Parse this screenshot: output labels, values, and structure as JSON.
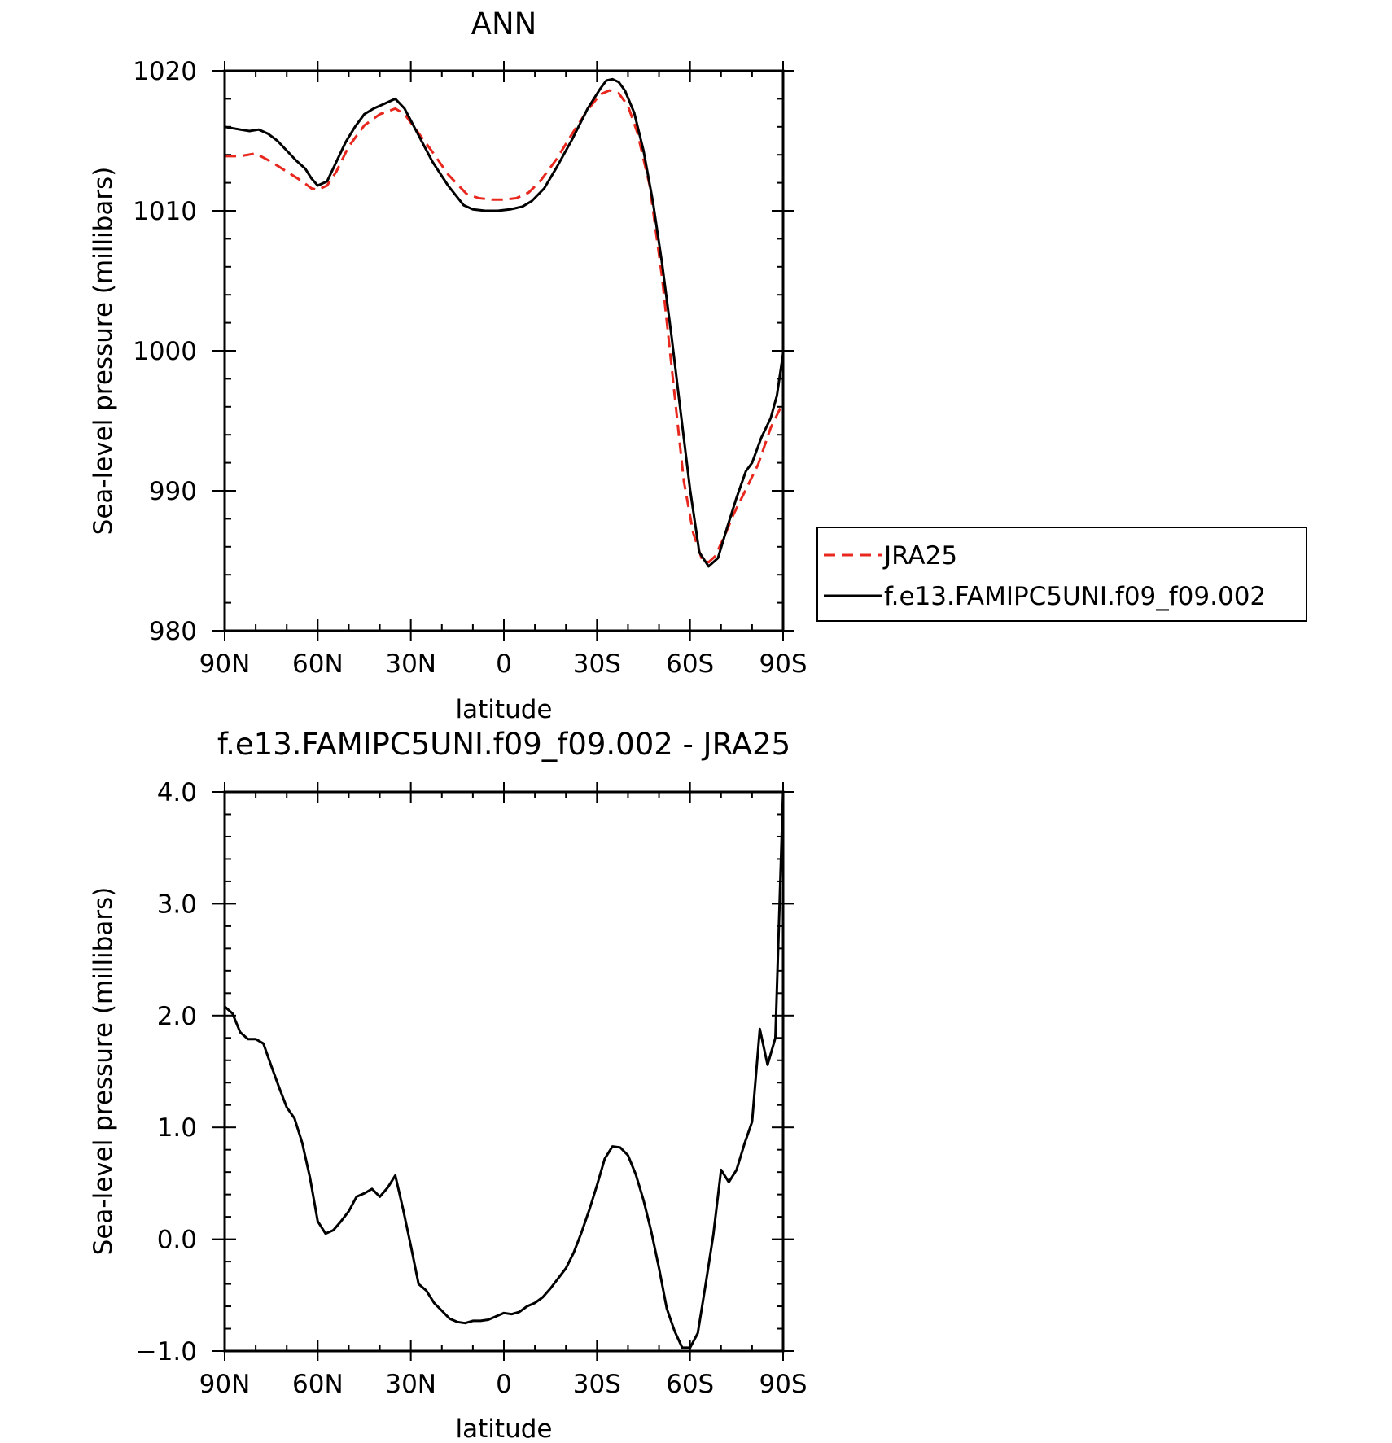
{
  "chart_data": [
    {
      "type": "line",
      "title": "ANN",
      "xlabel": "latitude",
      "ylabel": "Sea-level pressure (millibars)",
      "xlim": [
        90,
        -90
      ],
      "ylim": [
        980,
        1020
      ],
      "x_tick_values": [
        90,
        60,
        30,
        0,
        -30,
        -60,
        -90
      ],
      "x_tick_labels": [
        "90N",
        "60N",
        "30N",
        "0",
        "30S",
        "60S",
        "90S"
      ],
      "y_tick_values": [
        980,
        990,
        1000,
        1010,
        1020
      ],
      "y_tick_labels": [
        "980",
        "990",
        "1000",
        "1010",
        "1020"
      ],
      "legend_position": "right",
      "series": [
        {
          "name": "JRA25",
          "color": "#e8281e",
          "dash": "dashed",
          "x": [
            90,
            85,
            80,
            75,
            70,
            65,
            62,
            60,
            57,
            54,
            50,
            45,
            40,
            35,
            32,
            28,
            23,
            18,
            12,
            8,
            4,
            0,
            -4,
            -8,
            -12,
            -17,
            -22,
            -27,
            -31,
            -34,
            -37,
            -40,
            -43,
            -47,
            -51,
            -55,
            -58,
            -61,
            -64,
            -66,
            -68,
            -71,
            -74,
            -78,
            -82,
            -86,
            -90
          ],
          "values": [
            1013.9,
            1013.9,
            1014.1,
            1013.5,
            1012.8,
            1012.1,
            1011.6,
            1011.5,
            1011.8,
            1012.8,
            1014.6,
            1016.1,
            1016.9,
            1017.3,
            1016.9,
            1015.7,
            1014.2,
            1012.6,
            1011.2,
            1010.9,
            1010.8,
            1010.8,
            1010.9,
            1011.3,
            1012.2,
            1013.7,
            1015.5,
            1017.2,
            1018.3,
            1018.6,
            1018.4,
            1017.5,
            1015.6,
            1011.8,
            1005.2,
            996.9,
            990.7,
            987.0,
            985.0,
            984.9,
            985.3,
            986.7,
            988.3,
            990.1,
            991.9,
            994.5,
            996.3
          ]
        },
        {
          "name": "f.e13.FAMIPC5UNI.f09_f09.002",
          "color": "#000000",
          "dash": "solid",
          "x": [
            90,
            85,
            82,
            79,
            76,
            73,
            70,
            67,
            64,
            62,
            60,
            57,
            54,
            51,
            48,
            45,
            42,
            39,
            35,
            32,
            28,
            23,
            18,
            13,
            10,
            6,
            2,
            -2,
            -6,
            -9,
            -13,
            -17,
            -22,
            -27,
            -31,
            -33,
            -35,
            -37,
            -39,
            -42,
            -45,
            -48,
            -51,
            -54,
            -57,
            -60,
            -63,
            -66,
            -69,
            -72,
            -75,
            -78,
            -80,
            -83,
            -86,
            -88,
            -90
          ],
          "values": [
            1016.0,
            1015.8,
            1015.7,
            1015.8,
            1015.5,
            1015.0,
            1014.3,
            1013.6,
            1013.0,
            1012.3,
            1011.8,
            1012.1,
            1013.5,
            1014.9,
            1016.0,
            1016.9,
            1017.3,
            1017.6,
            1018.0,
            1017.3,
            1015.6,
            1013.5,
            1011.8,
            1010.4,
            1010.1,
            1010.0,
            1010.0,
            1010.1,
            1010.3,
            1010.7,
            1011.6,
            1013.1,
            1015.1,
            1017.3,
            1018.7,
            1019.3,
            1019.4,
            1019.2,
            1018.6,
            1017.0,
            1014.3,
            1010.7,
            1006.2,
            1001.1,
            995.6,
            990.1,
            985.6,
            984.6,
            985.2,
            987.4,
            989.5,
            991.4,
            992.0,
            993.8,
            995.2,
            996.8,
            999.8
          ]
        }
      ]
    },
    {
      "type": "line",
      "title": "f.e13.FAMIPC5UNI.f09_f09.002 - JRA25",
      "xlabel": "latitude",
      "ylabel": "Sea-level pressure (millibars)",
      "xlim": [
        90,
        -90
      ],
      "ylim": [
        -1.0,
        4.0
      ],
      "x_tick_values": [
        90,
        60,
        30,
        0,
        -30,
        -60,
        -90
      ],
      "x_tick_labels": [
        "90N",
        "60N",
        "30N",
        "0",
        "30S",
        "60S",
        "90S"
      ],
      "y_tick_values": [
        -1.0,
        0.0,
        1.0,
        2.0,
        3.0,
        4.0
      ],
      "y_tick_labels": [
        "−1.0",
        "0.0",
        "1.0",
        "2.0",
        "3.0",
        "4.0"
      ],
      "series": [
        {
          "color": "#000000",
          "dash": "solid",
          "x": [
            90,
            87.5,
            85,
            82.5,
            80,
            77.5,
            75,
            72.5,
            70,
            67.5,
            65,
            62.5,
            60,
            57.5,
            55,
            52.5,
            50,
            47.5,
            45,
            42.5,
            40,
            37.5,
            35,
            32.5,
            30,
            27.5,
            25,
            22.5,
            20,
            17.5,
            15,
            12.5,
            10,
            7.5,
            5,
            2.5,
            0,
            -2.5,
            -5,
            -7.5,
            -10,
            -12.5,
            -15,
            -17.5,
            -20,
            -22.5,
            -25,
            -27.5,
            -30,
            -32.5,
            -35,
            -37.5,
            -40,
            -42.5,
            -45,
            -47.5,
            -50,
            -52.5,
            -55,
            -57.5,
            -60,
            -62.5,
            -65,
            -67.5,
            -70,
            -72.5,
            -75,
            -77.5,
            -80,
            -82.5,
            -85,
            -87.5,
            -90
          ],
          "values": [
            2.08,
            2.02,
            1.85,
            1.79,
            1.79,
            1.75,
            1.55,
            1.36,
            1.18,
            1.08,
            0.86,
            0.55,
            0.16,
            0.05,
            0.08,
            0.16,
            0.25,
            0.38,
            0.41,
            0.45,
            0.38,
            0.46,
            0.57,
            0.27,
            -0.06,
            -0.4,
            -0.46,
            -0.57,
            -0.64,
            -0.71,
            -0.74,
            -0.75,
            -0.73,
            -0.73,
            -0.72,
            -0.69,
            -0.66,
            -0.67,
            -0.65,
            -0.6,
            -0.57,
            -0.52,
            -0.44,
            -0.35,
            -0.26,
            -0.12,
            0.06,
            0.26,
            0.48,
            0.72,
            0.83,
            0.82,
            0.75,
            0.58,
            0.35,
            0.07,
            -0.26,
            -0.62,
            -0.82,
            -0.97,
            -0.97,
            -0.84,
            -0.41,
            0.04,
            0.62,
            0.51,
            0.62,
            0.85,
            1.05,
            1.88,
            1.56,
            1.8,
            4.0
          ]
        }
      ]
    }
  ]
}
